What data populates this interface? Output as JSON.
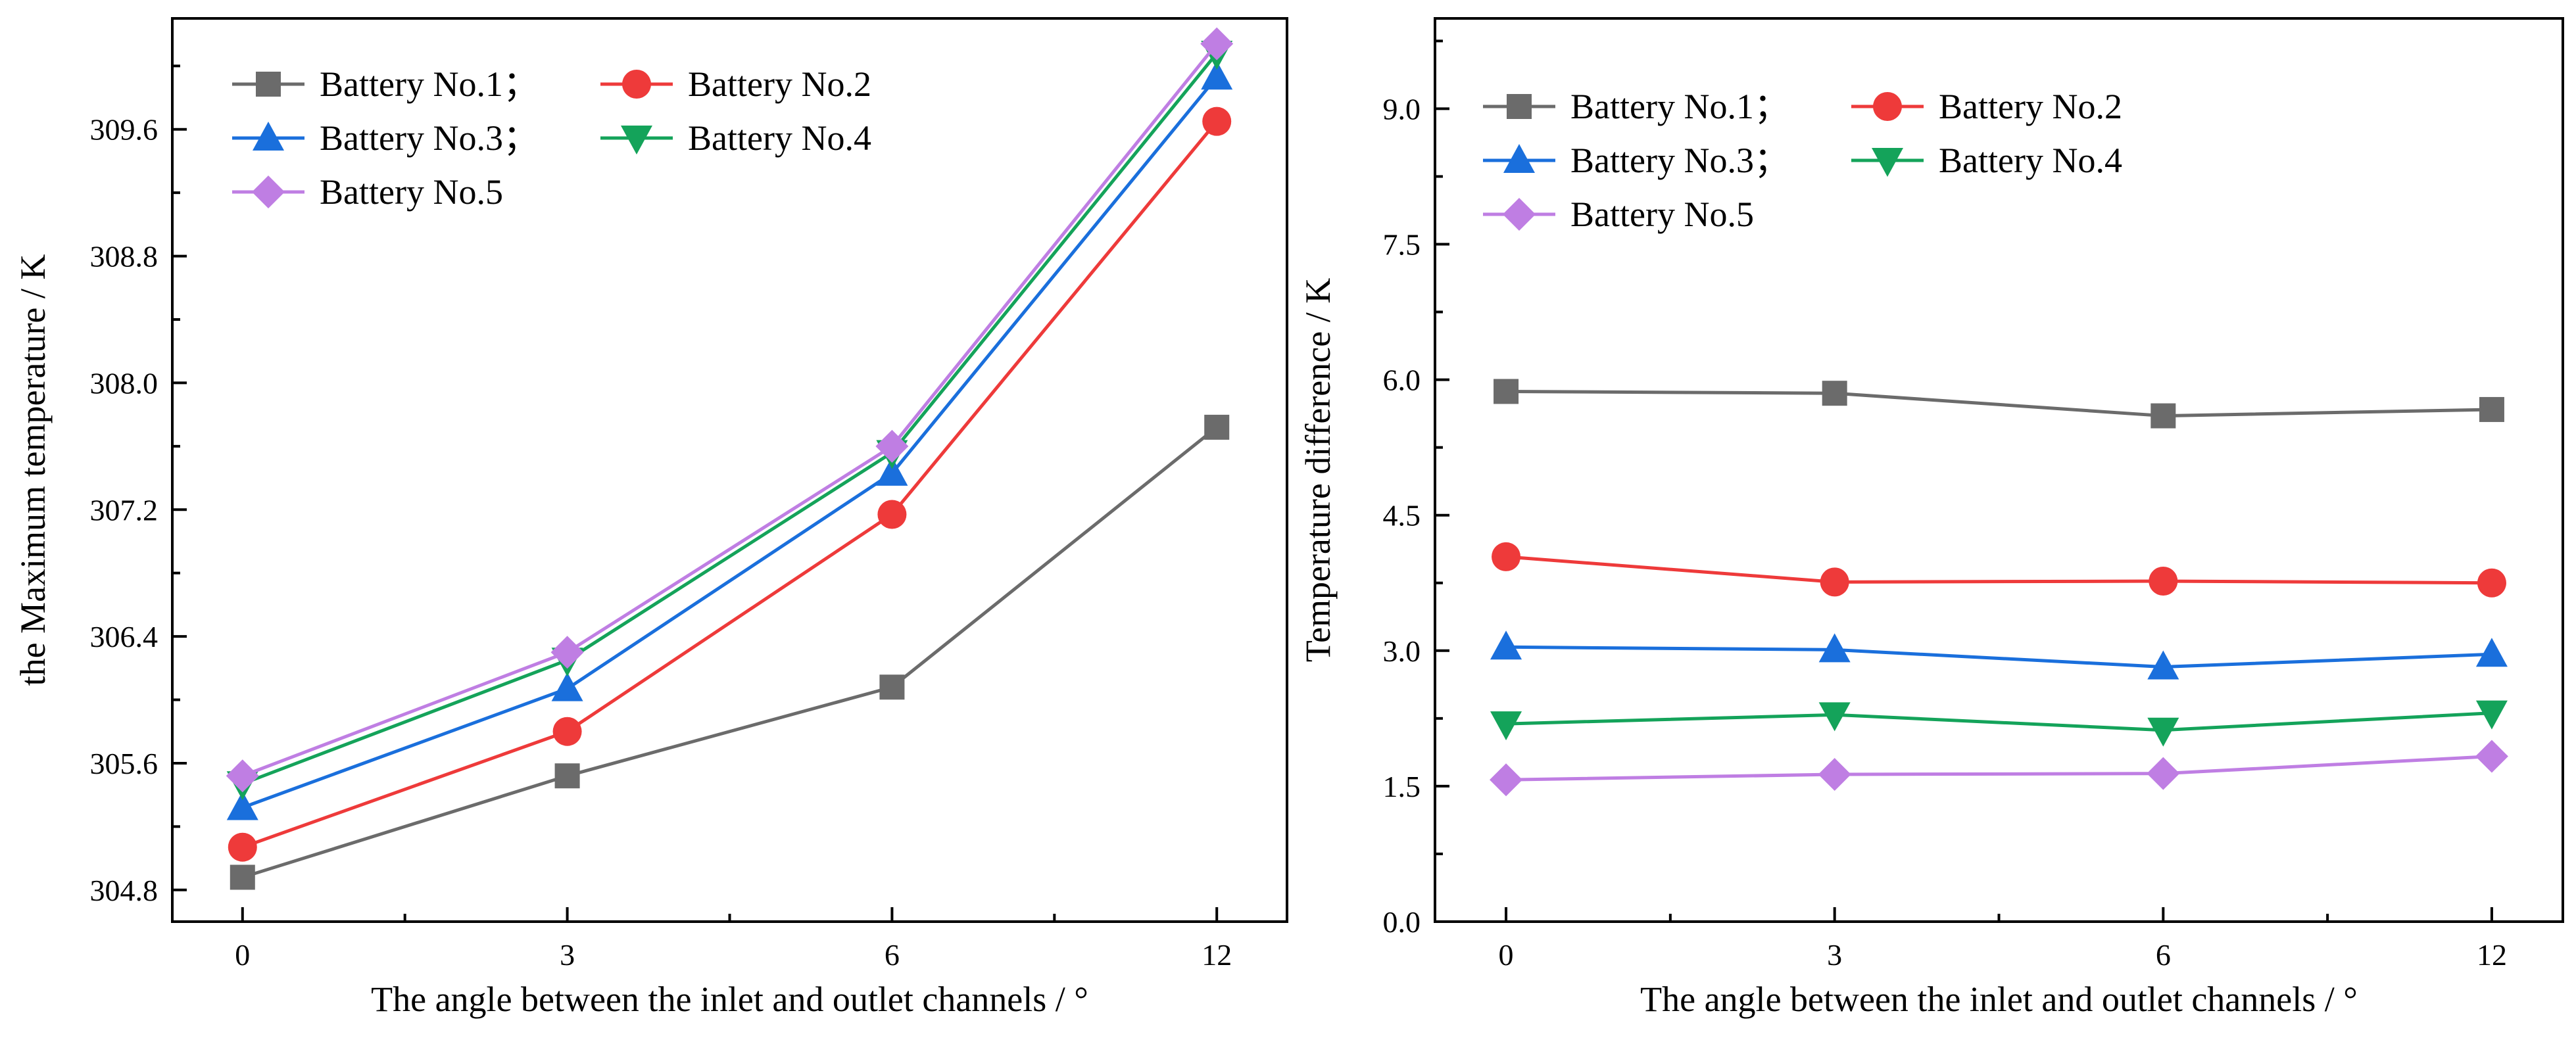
{
  "figure": {
    "panel_count": 2
  },
  "colors": {
    "Battery No.1": "#6b6b6b",
    "Battery No.2": "#ee3a3a",
    "Battery No.3": "#1a6fdc",
    "Battery No.4": "#14a35a",
    "Battery No.5": "#bf7ee3"
  },
  "chart_data": [
    {
      "type": "line",
      "title": "",
      "xlabel": "The angle between the inlet and outlet channels / °",
      "ylabel": "the Maximum temperature / K",
      "categories": [
        "0",
        "3",
        "6",
        "12"
      ],
      "ylim": [
        304.6,
        310.3
      ],
      "yticks": [
        "304.8",
        "305.6",
        "306.4",
        "307.2",
        "308.0",
        "308.8",
        "309.6"
      ],
      "legend": {
        "position": "top-left",
        "labels": [
          "Battery No.1；",
          "Battery No.2",
          "Battery No.3；",
          "Battery No.4",
          "Battery No.5"
        ]
      },
      "series": [
        {
          "name": "Battery No.1",
          "marker": "square",
          "values": [
            304.88,
            305.52,
            306.08,
            307.72
          ]
        },
        {
          "name": "Battery No.2",
          "marker": "circle",
          "values": [
            305.07,
            305.8,
            307.17,
            309.65
          ]
        },
        {
          "name": "Battery No.3",
          "marker": "triangle-up",
          "values": [
            305.32,
            306.07,
            307.43,
            309.93
          ]
        },
        {
          "name": "Battery No.4",
          "marker": "triangle-down",
          "values": [
            305.47,
            306.25,
            307.56,
            310.08
          ]
        },
        {
          "name": "Battery No.5",
          "marker": "diamond",
          "values": [
            305.52,
            306.3,
            307.6,
            310.14
          ]
        }
      ]
    },
    {
      "type": "line",
      "title": "",
      "xlabel": "The angle between the inlet and outlet channels / °",
      "ylabel": "Temperature difference / K",
      "categories": [
        "0",
        "3",
        "6",
        "12"
      ],
      "ylim": [
        0,
        10.0
      ],
      "yticks": [
        "0.0",
        "1.5",
        "3.0",
        "4.5",
        "6.0",
        "7.5",
        "9.0"
      ],
      "legend": {
        "position": "top-left",
        "labels": [
          "Battery No.1；",
          "Battery No.2",
          "Battery No.3；",
          "Battery No.4",
          "Battery No.5"
        ]
      },
      "series": [
        {
          "name": "Battery No.1",
          "marker": "square",
          "values": [
            5.87,
            5.85,
            5.6,
            5.67
          ]
        },
        {
          "name": "Battery No.2",
          "marker": "circle",
          "values": [
            4.04,
            3.76,
            3.77,
            3.75
          ]
        },
        {
          "name": "Battery No.3",
          "marker": "triangle-up",
          "values": [
            3.04,
            3.01,
            2.82,
            2.96
          ]
        },
        {
          "name": "Battery No.4",
          "marker": "triangle-down",
          "values": [
            2.19,
            2.29,
            2.12,
            2.31
          ]
        },
        {
          "name": "Battery No.5",
          "marker": "diamond",
          "values": [
            1.57,
            1.63,
            1.64,
            1.83
          ]
        }
      ]
    }
  ]
}
